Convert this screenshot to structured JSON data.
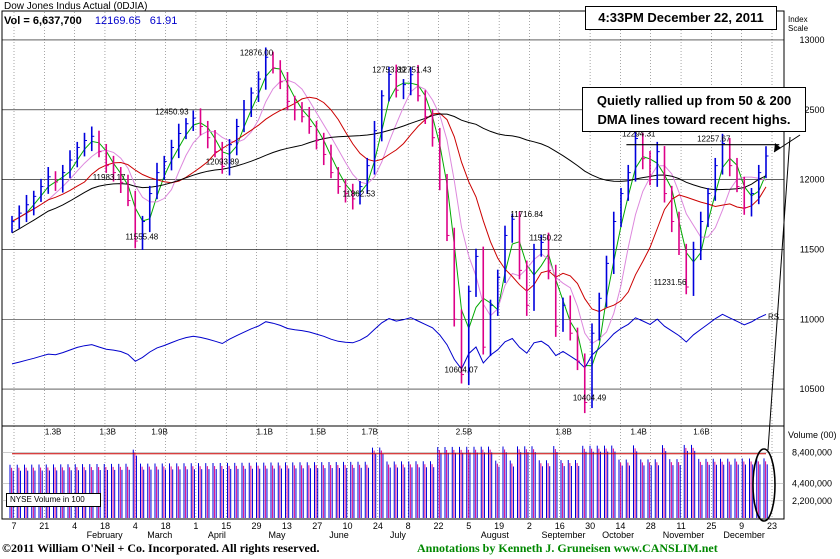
{
  "header": {
    "title": "Dow Jones Indus Actual  (0DJIA)",
    "volume_label": "Vol = 6,637,700",
    "last_price": "12169.65",
    "change": "61.91",
    "timestamp": "4:33PM December 22, 2011",
    "index_scale_label": "Index\nScale"
  },
  "callout": {
    "line1": "Quietly rallied up from 50 & 200",
    "line2": "DMA lines toward recent highs."
  },
  "volume_panel": {
    "label_box": "NYSE Volume in 100",
    "axis_title": "Volume (00)"
  },
  "footer": {
    "copyright": "©2011 William O'Neil + Co. Incorporated. All rights reserved.",
    "annotations": "Annotations by Kenneth J. Gruneisen  www.CANSLIM.net"
  },
  "colors": {
    "up": "#0000dd",
    "down": "#dd0088",
    "ma50": "#cc0000",
    "ma200": "#000000",
    "ma10": "#00aa00",
    "ma21": "#dd88dd",
    "rs": "#0000cc"
  },
  "chart_data": {
    "type": "ohlc",
    "title": "Dow Jones Indus Actual  (0DJIA)",
    "ylabel": "Index Scale",
    "ylim": [
      10250,
      13200
    ],
    "price_ticks": [
      10500,
      11000,
      11500,
      12000,
      12500,
      13000
    ],
    "volume_ticks": [
      {
        "v": 2200000,
        "label": "2,200,000"
      },
      {
        "v": 4400000,
        "label": "4,400,000"
      },
      {
        "v": 8400000,
        "label": "8,400,000"
      }
    ],
    "volume_max": 11500000,
    "date_ticks": [
      "7",
      "21",
      "4",
      "18",
      "4",
      "18",
      "1",
      "15",
      "29",
      "13",
      "27",
      "10",
      "24",
      "8",
      "22",
      "5",
      "19",
      "2",
      "16",
      "30",
      "14",
      "28",
      "11",
      "25",
      "9",
      "23"
    ],
    "month_labels": [
      {
        "label": "February",
        "at": 2
      },
      {
        "label": "March",
        "at": 4
      },
      {
        "label": "April",
        "at": 6
      },
      {
        "label": "May",
        "at": 8
      },
      {
        "label": "June",
        "at": 10
      },
      {
        "label": "July",
        "at": 12
      },
      {
        "label": "August",
        "at": 15
      },
      {
        "label": "September",
        "at": 17
      },
      {
        "label": "October",
        "at": 19
      },
      {
        "label": "November",
        "at": 21
      },
      {
        "label": "December",
        "at": 23
      }
    ],
    "annotations": [
      {
        "label": "12876.00",
        "w": 18.5,
        "price": 12876
      },
      {
        "label": "12753.89",
        "w": 28.2,
        "price": 12754
      },
      {
        "label": "12751.43",
        "w": 30.1,
        "price": 12751
      },
      {
        "label": "12450.93",
        "w": 12.3,
        "price": 12451
      },
      {
        "label": "12294.31",
        "w": 46.5,
        "price": 12294
      },
      {
        "label": "12257.67",
        "w": 52.0,
        "price": 12258
      },
      {
        "label": "11983.17",
        "w": 7.7,
        "price": 11983
      },
      {
        "label": "12093.89",
        "w": 16.0,
        "price": 12094
      },
      {
        "label": "11862.53",
        "w": 26.0,
        "price": 11863
      },
      {
        "label": "11716.84",
        "w": 38.3,
        "price": 11717
      },
      {
        "label": "11550.22",
        "w": 39.7,
        "price": 11550
      },
      {
        "label": "11555.48",
        "w": 10.1,
        "price": 11555
      },
      {
        "label": "11231.56",
        "w": 48.8,
        "price": 11232
      },
      {
        "label": "10604.07",
        "w": 33.5,
        "price": 10604
      },
      {
        "label": "10404.49",
        "w": 42.9,
        "price": 10404
      }
    ],
    "volume_annotations": [
      {
        "label": "1.3B",
        "w": 3.6
      },
      {
        "label": "1.3B",
        "w": 7.6
      },
      {
        "label": "1.9B",
        "w": 11.4
      },
      {
        "label": "1.1B",
        "w": 19.1
      },
      {
        "label": "1.5B",
        "w": 23.0
      },
      {
        "label": "1.7B",
        "w": 26.8
      },
      {
        "label": "2.5B",
        "w": 33.7
      },
      {
        "label": "1.8B",
        "w": 41.0
      },
      {
        "label": "1.4B",
        "w": 46.5
      },
      {
        "label": "1.6B",
        "w": 51.1
      }
    ],
    "rs_label": "RS",
    "resistance_line": {
      "price": 12250,
      "from_w": 45.6,
      "to_w": 56.8
    },
    "closes": [
      11700,
      11760,
      11820,
      11880,
      11950,
      12020,
      11983,
      12050,
      12140,
      12230,
      12280,
      12310,
      12200,
      12100,
      12050,
      11980,
      11850,
      11560,
      11700,
      11900,
      12050,
      12130,
      12230,
      12330,
      12400,
      12440,
      12380,
      12300,
      12200,
      12094,
      12250,
      12380,
      12500,
      12620,
      12720,
      12876,
      12800,
      12700,
      12560,
      12500,
      12450,
      12380,
      12280,
      12180,
      12050,
      11950,
      11900,
      11862,
      11950,
      12100,
      12350,
      12600,
      12753,
      12640,
      12680,
      12751,
      12600,
      12450,
      12300,
      12000,
      11600,
      11000,
      10604,
      11200,
      11450,
      10800,
      11100,
      11300,
      11600,
      11716,
      11350,
      11100,
      11500,
      11550,
      11350,
      10950,
      11100,
      10900,
      10700,
      10404,
      10900,
      11150,
      11400,
      11700,
      11900,
      12050,
      12294,
      12150,
      12000,
      12200,
      11900,
      11700,
      11500,
      11231,
      11500,
      11700,
      11900,
      12100,
      12258,
      12100,
      11950,
      11800,
      11900,
      12050,
      12169
    ]
  }
}
